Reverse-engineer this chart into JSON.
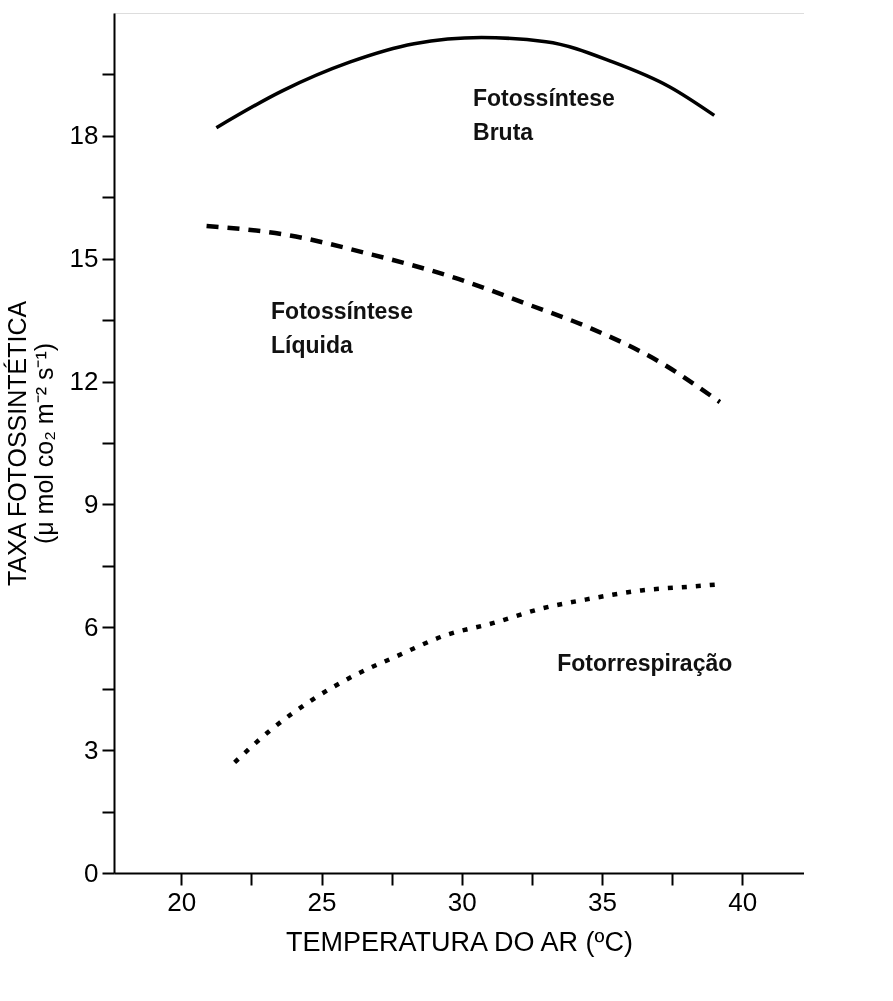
{
  "chart_data": {
    "type": "line",
    "xlabel": "TEMPERATURA DO AR (ºC)",
    "ylabel": "TAXA FOTOSSINTÉTICA\n(μ mol co₂ m⁻² s⁻¹)",
    "xlim": [
      17.6,
      42.2
    ],
    "xticks": [
      20,
      {
        "value": 22.5,
        "label": null
      },
      25,
      {
        "value": 27.5,
        "label": null
      },
      30,
      {
        "value": 32.5,
        "label": null
      },
      35,
      {
        "value": 37.5,
        "label": null
      },
      40
    ],
    "ylim": [
      0,
      21
    ],
    "yticks": [
      0,
      {
        "value": 1.5,
        "label": null
      },
      3,
      {
        "value": 4.5,
        "label": null
      },
      6,
      {
        "value": 7.5,
        "label": null
      },
      9,
      {
        "value": 10.5,
        "label": null
      },
      12,
      {
        "value": 13.5,
        "label": null
      },
      15,
      {
        "value": 16.5,
        "label": null
      },
      18,
      {
        "value": 19.5,
        "label": null
      }
    ],
    "grid": false,
    "marker": "none",
    "series": [
      {
        "name": "Fotossíntese Bruta",
        "color": "#000000",
        "line_style": "solid",
        "x": [
          21.25,
          23.6,
          26.0,
          28.3,
          30.7,
          33.0,
          35.4,
          37.4,
          39.0
        ],
        "values": [
          18.2,
          19.1,
          19.8,
          20.25,
          20.4,
          20.3,
          19.8,
          19.2,
          18.5
        ]
      },
      {
        "name": "Fotossíntese Líquida",
        "color": "#000000",
        "line_style": "dashed",
        "x": [
          20.9,
          23.6,
          26.8,
          29.9,
          32.3,
          34.6,
          37.0,
          39.2
        ],
        "values": [
          15.8,
          15.6,
          15.1,
          14.5,
          13.9,
          13.3,
          12.5,
          11.5
        ]
      },
      {
        "name": "Fotorrespiração",
        "color": "#000000",
        "line_style": "dotted",
        "x": [
          21.9,
          23.2,
          24.6,
          26.1,
          27.7,
          29.4,
          31.1,
          32.8,
          34.6,
          36.4,
          38.3,
          39.2
        ],
        "values": [
          2.7,
          3.5,
          4.2,
          4.8,
          5.3,
          5.8,
          6.1,
          6.45,
          6.7,
          6.9,
          7.0,
          7.05
        ]
      }
    ]
  }
}
